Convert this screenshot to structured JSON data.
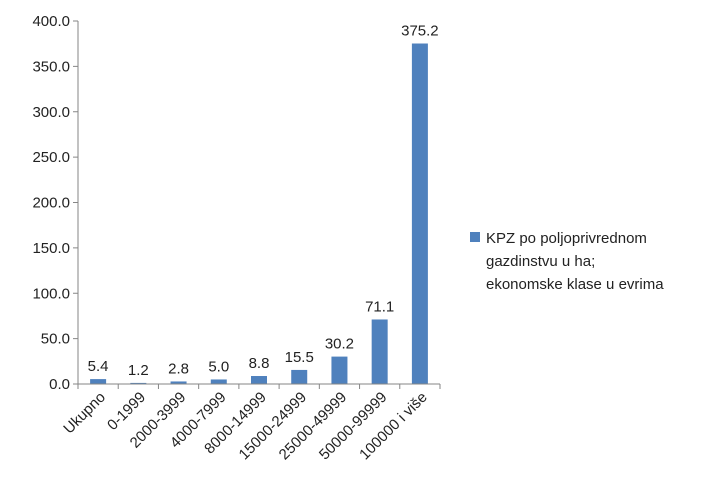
{
  "chart_data": {
    "type": "bar",
    "categories": [
      "Ukupno",
      "0-1999",
      "2000-3999",
      "4000-7999",
      "8000-14999",
      "15000-24999",
      "25000-49999",
      "50000-99999",
      "100000 i više"
    ],
    "series": [
      {
        "name": "KPZ po poljoprivrednom gazdinstvu u ha; ekonomske klase u evrima",
        "values": [
          5.4,
          1.2,
          2.8,
          5.0,
          8.8,
          15.5,
          30.2,
          71.1,
          375.2
        ]
      }
    ],
    "data_labels": [
      "5.4",
      "1.2",
      "2.8",
      "5.0",
      "8.8",
      "15.5",
      "30.2",
      "71.1",
      "375.2"
    ],
    "y_ticks": [
      "0.0",
      "50.0",
      "100.0",
      "150.0",
      "200.0",
      "250.0",
      "300.0",
      "350.0",
      "400.0"
    ],
    "ylim": [
      0,
      400
    ],
    "title": "",
    "xlabel": "",
    "ylabel": "",
    "grid": false,
    "legend_position": "right",
    "bar_color": "#4f81bd"
  },
  "legend": {
    "lines": [
      "KPZ po poljoprivrednom",
      "gazdinstvu u ha;",
      "ekonomske klase u evrima"
    ]
  }
}
